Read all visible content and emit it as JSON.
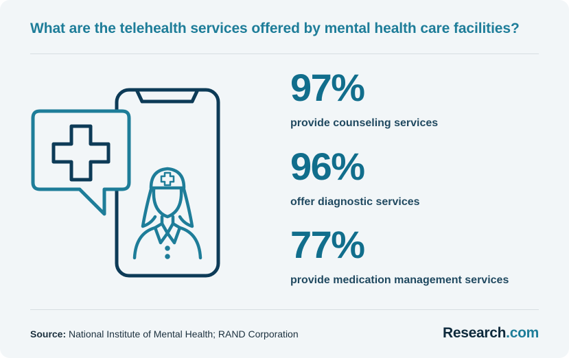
{
  "title": "What are the telehealth services offered by mental health care facilities?",
  "stats": [
    {
      "value": "97%",
      "label": "provide counseling services"
    },
    {
      "value": "96%",
      "label": "offer diagnostic services"
    },
    {
      "value": "77%",
      "label": "provide medication management services"
    }
  ],
  "footer": {
    "source_label": "Source:",
    "source_text": "National Institute of Mental Health; RAND Corporation",
    "brand_main": "Research",
    "brand_accent": ".com"
  },
  "illustration": {
    "icons": [
      "smartphone-icon",
      "speech-bubble-icon",
      "medical-cross-icon",
      "nurse-icon"
    ]
  },
  "colors": {
    "accent": "#1e7d99",
    "stat": "#116e8c",
    "dark": "#0e2a3c",
    "background": "#f2f6f8"
  }
}
